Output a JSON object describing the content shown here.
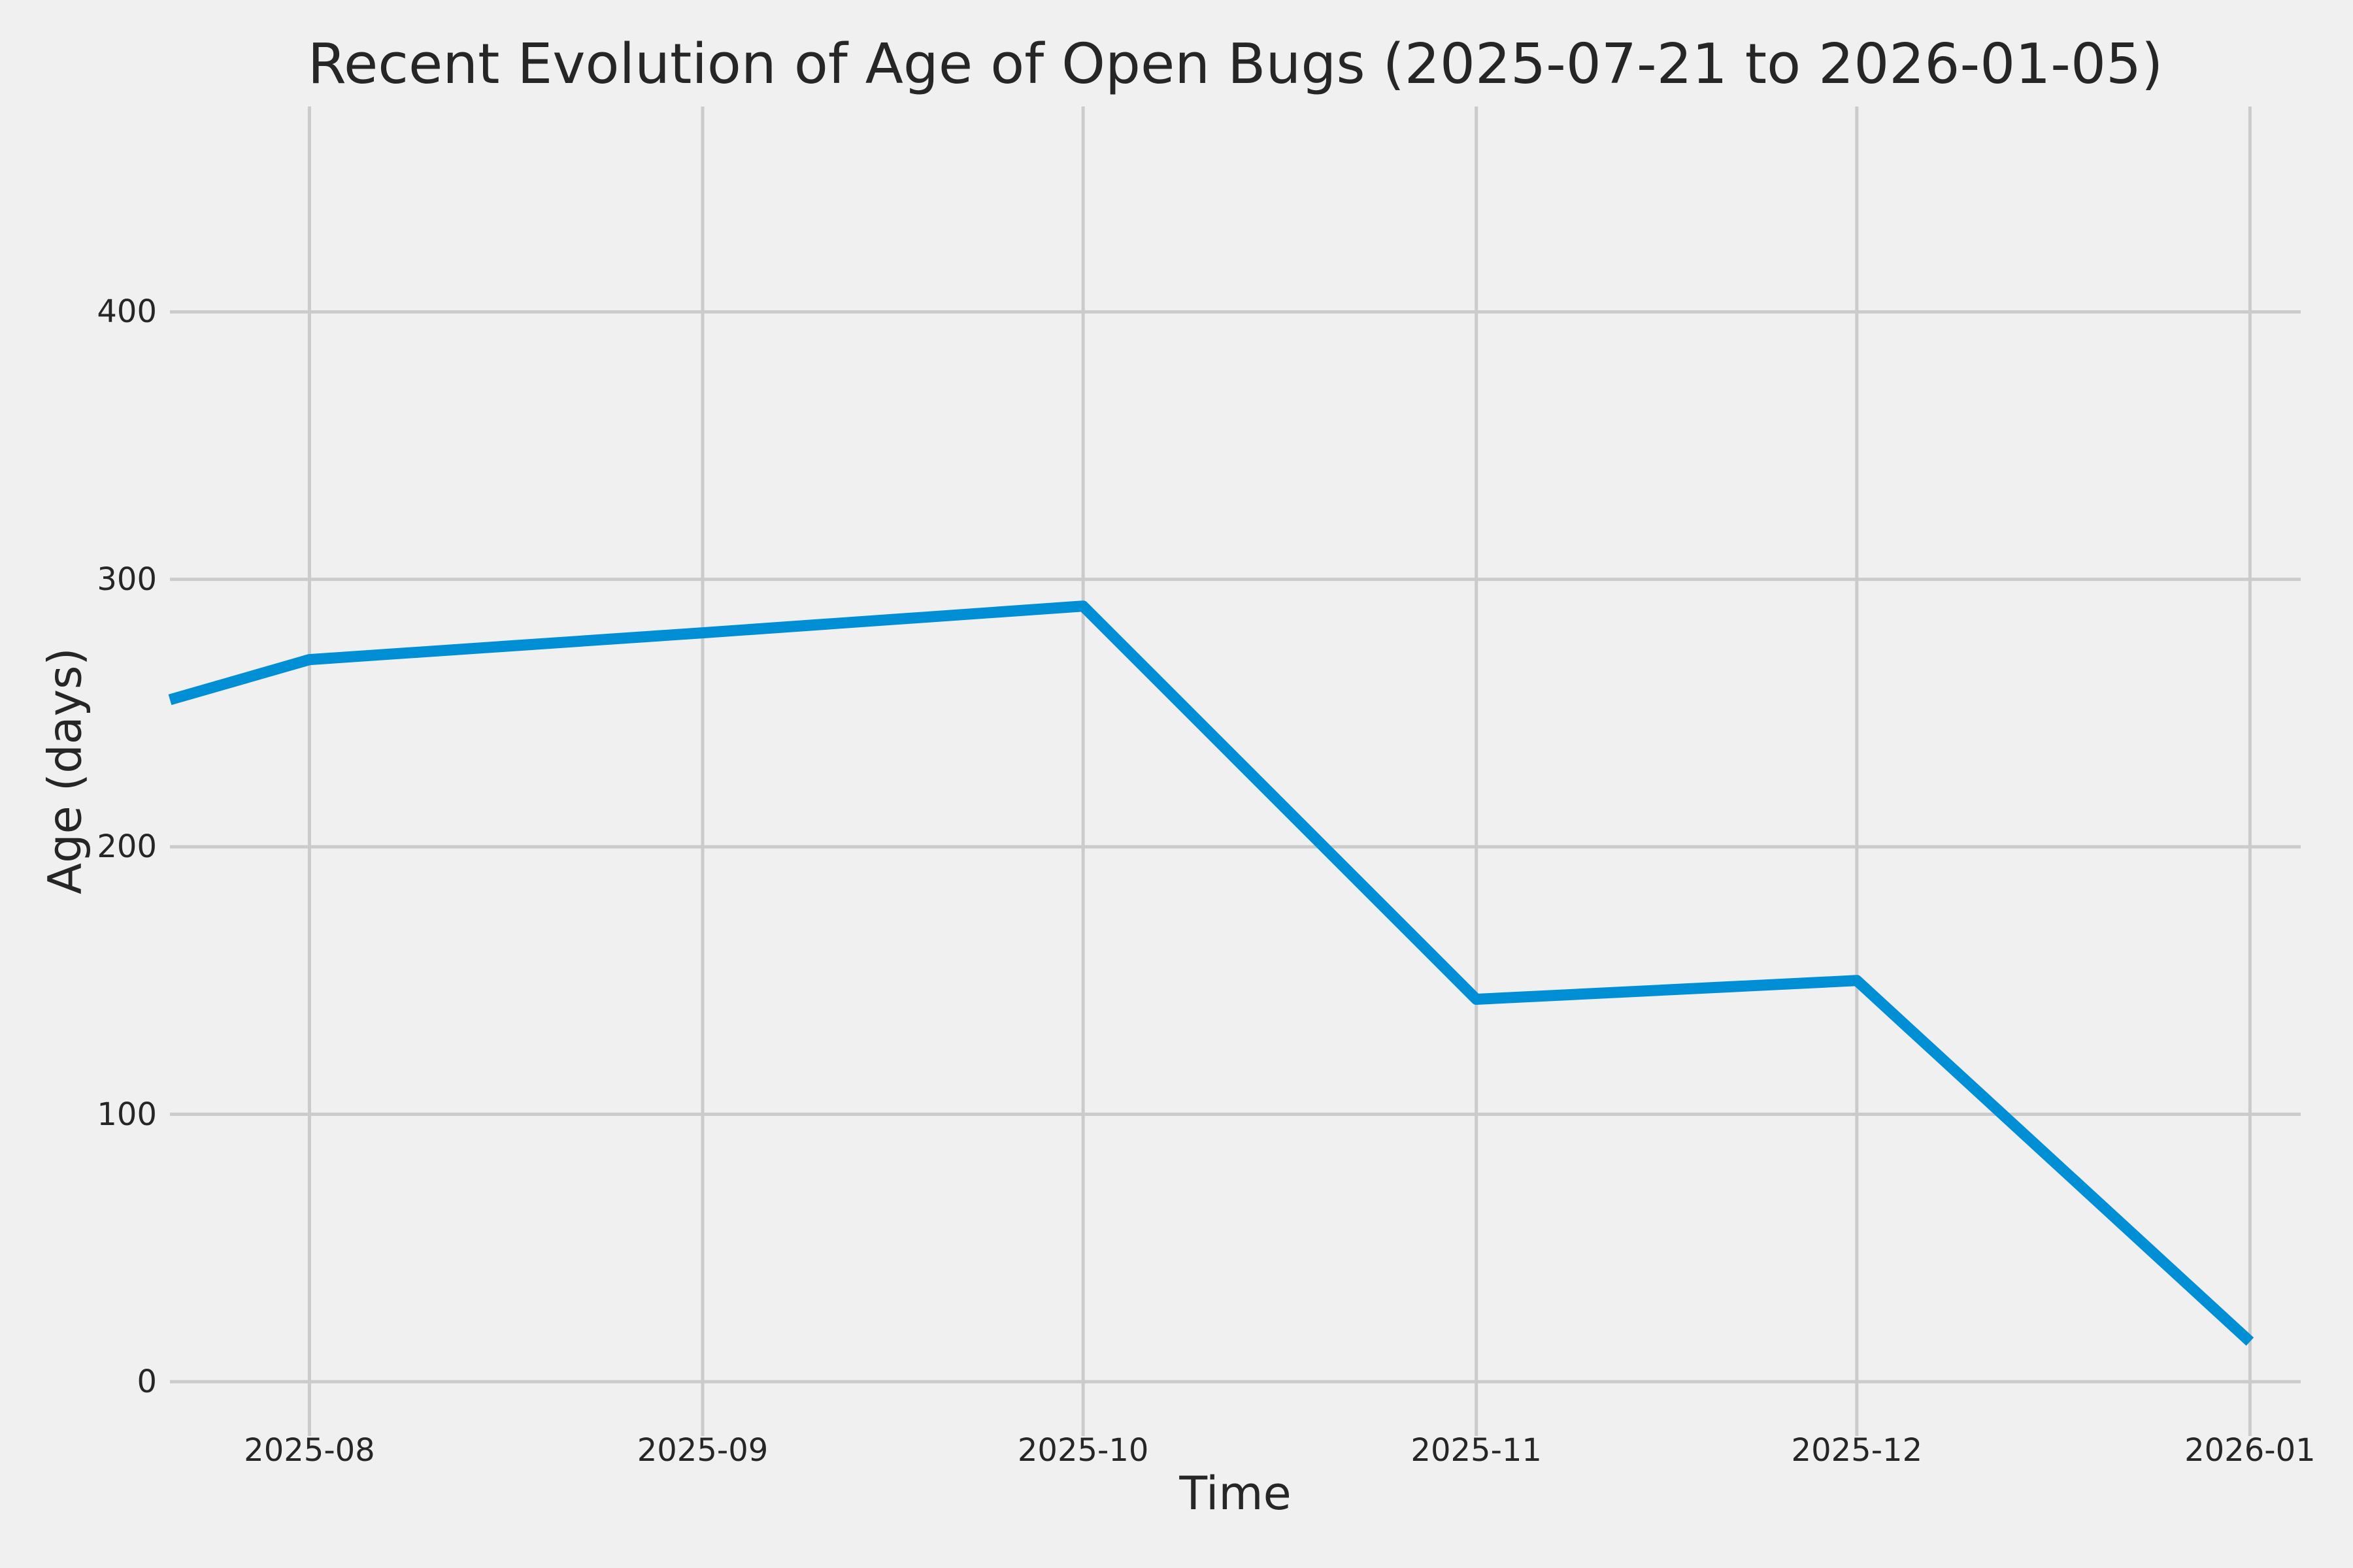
{
  "figure": {
    "background_color": "#f0f0f0",
    "text_color": "#262626",
    "grid_color": "#cbcbcb",
    "accent_color": "#008fd5"
  },
  "chart_data": {
    "type": "line",
    "title": "Recent Evolution of Age of Open Bugs (2025-07-21 to 2026-01-05)",
    "xlabel": "Time",
    "ylabel": "Age (days)",
    "x": [
      "2025-07-21",
      "2025-08-01",
      "2025-09-01",
      "2025-10-01",
      "2025-11-01",
      "2025-12-01",
      "2026-01-01"
    ],
    "series": [
      {
        "name": "age-of-open-bugs",
        "color": "#008fd5",
        "values": [
          255,
          270,
          280,
          290,
          143,
          150,
          15
        ]
      }
    ],
    "xlim": [
      "2025-07-21",
      "2026-01-05"
    ],
    "ylim": [
      -20.3,
      476.8
    ],
    "grid": true,
    "legend_position": "none",
    "xticks": [
      {
        "date": "2025-08-01",
        "label": "2025-08"
      },
      {
        "date": "2025-09-01",
        "label": "2025-09"
      },
      {
        "date": "2025-10-01",
        "label": "2025-10"
      },
      {
        "date": "2025-11-01",
        "label": "2025-11"
      },
      {
        "date": "2025-12-01",
        "label": "2025-12"
      },
      {
        "date": "2026-01-01",
        "label": "2026-01"
      }
    ],
    "yticks": [
      {
        "value": 0,
        "label": "0"
      },
      {
        "value": 100,
        "label": "100"
      },
      {
        "value": 200,
        "label": "200"
      },
      {
        "value": 300,
        "label": "300"
      },
      {
        "value": 400,
        "label": "400"
      }
    ]
  }
}
